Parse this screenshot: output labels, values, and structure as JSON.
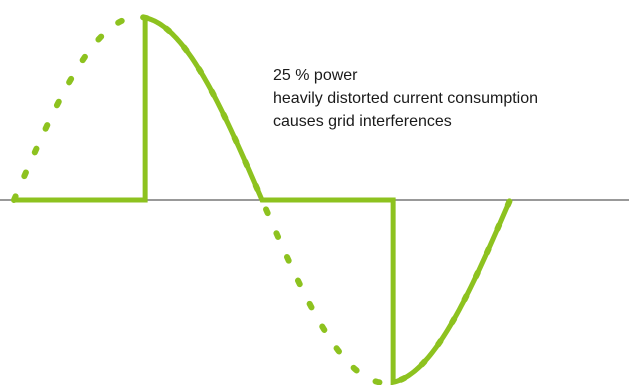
{
  "annotation": {
    "line1": "25 % power",
    "line2": "heavily distorted current consumption",
    "line3": "causes grid interferences"
  },
  "colors": {
    "waveform": "#8dc21f",
    "axis": "#333333",
    "text": "#1a1a1a"
  },
  "chart_data": {
    "type": "line",
    "title": "",
    "xlabel": "",
    "ylabel": "",
    "phase_angle_cut_fraction": 0.75,
    "power_fraction": 0.25,
    "series": [
      {
        "style": "dashed",
        "shape": "full sine wave (reference)"
      },
      {
        "style": "solid",
        "shape": "phase-cut sine wave (actual current)"
      }
    ]
  }
}
